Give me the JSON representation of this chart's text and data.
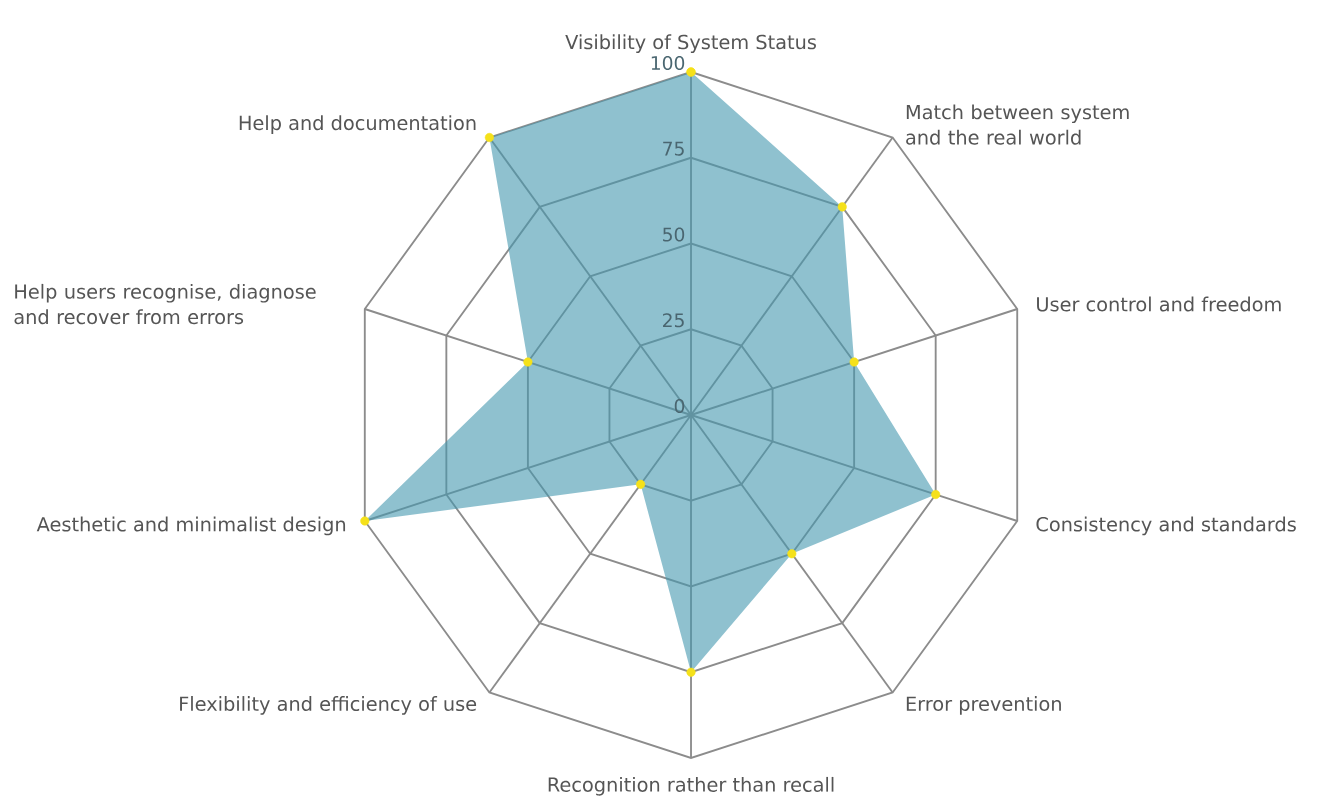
{
  "chart_data": {
    "type": "radar",
    "categories": [
      "Visibility of System Status",
      "Match between system and the real world",
      "User control and freedom",
      "Consistency and standards",
      "Error prevention",
      "Recognition rather than recall",
      "Flexibility and efficiency of use",
      "Aesthetic and minimalist design",
      "Help users recognise, diagnose and recover from errors",
      "Help and documentation"
    ],
    "series": [
      {
        "color": "#8fc1cf",
        "values": [
          100,
          75,
          50,
          75,
          50,
          75,
          25,
          100,
          50,
          100
        ]
      }
    ],
    "ylim": [
      0,
      100
    ],
    "yticks": [
      0,
      25,
      50,
      75,
      100
    ],
    "grid": true,
    "marker": "circle"
  }
}
